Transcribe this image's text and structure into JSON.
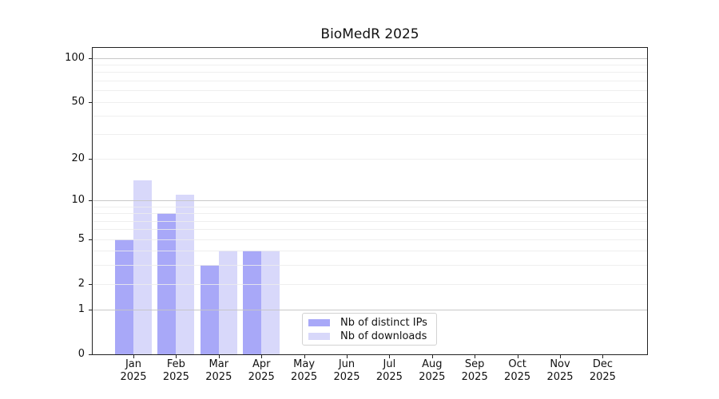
{
  "title": "BioMedR 2025",
  "chart_data": {
    "type": "bar",
    "title": "BioMedR 2025",
    "categories": [
      "Jan",
      "Feb",
      "Mar",
      "Apr",
      "May",
      "Jun",
      "Jul",
      "Aug",
      "Sep",
      "Oct",
      "Nov",
      "Dec"
    ],
    "year_label": "2025",
    "series": [
      {
        "name": "Nb of distinct IPs",
        "color": "#a8a8f8",
        "values": [
          5,
          8,
          3,
          4,
          0,
          0,
          0,
          0,
          0,
          0,
          0,
          0
        ]
      },
      {
        "name": "Nb of downloads",
        "color": "#d8d8fa",
        "values": [
          14,
          11,
          4,
          4,
          0,
          0,
          0,
          0,
          0,
          0,
          0,
          0
        ]
      }
    ],
    "yticks": [
      0,
      1,
      2,
      5,
      10,
      20,
      50,
      100
    ],
    "major_gridlines": [
      1,
      10,
      100
    ],
    "minor_gridlines": [
      2,
      3,
      4,
      5,
      6,
      7,
      8,
      9,
      20,
      30,
      40,
      50,
      60,
      70,
      80,
      90
    ],
    "scale": "log1p",
    "ylim": [
      0,
      117
    ],
    "xlabel": "",
    "ylabel": "",
    "grid": "on",
    "legend_position": "lower center"
  },
  "legend": {
    "items": [
      {
        "label": "Nb of distinct IPs"
      },
      {
        "label": "Nb of downloads"
      }
    ]
  }
}
